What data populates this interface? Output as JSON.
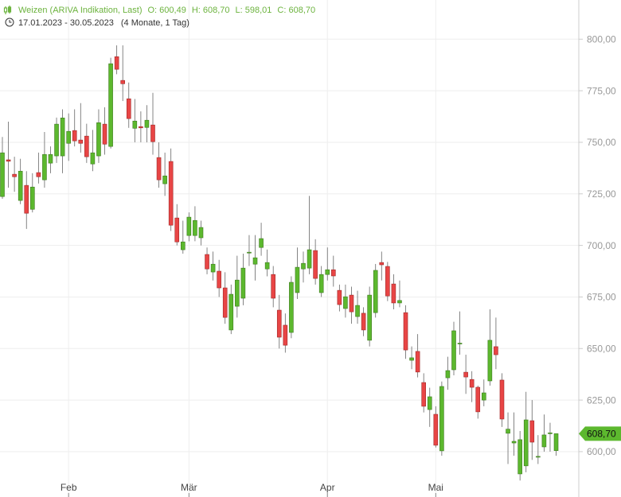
{
  "header": {
    "name": "Weizen (ARIVA Indikation, Last)",
    "open": "O: 600,49",
    "high": "H: 608,70",
    "low": "L: 598,01",
    "close": "C: 608,70",
    "range": "17.01.2023 - 30.05.2023",
    "duration": "(4 Monate, 1 Tag)"
  },
  "chart_data": {
    "type": "candlestick",
    "up_color": "#5cb82e",
    "down_color": "#e84545",
    "ylim": [
      578,
      819
    ],
    "yticks": [
      {
        "value": 600,
        "label": "600,00"
      },
      {
        "value": 625,
        "label": "625,00"
      },
      {
        "value": 650,
        "label": "650,00"
      },
      {
        "value": 675,
        "label": "675,00"
      },
      {
        "value": 700,
        "label": "700,00"
      },
      {
        "value": 725,
        "label": "725,00"
      },
      {
        "value": 750,
        "label": "750,00"
      },
      {
        "value": 775,
        "label": "775,00"
      },
      {
        "value": 800,
        "label": "800,00"
      }
    ],
    "xticks": [
      {
        "value": 11,
        "label": "Feb"
      },
      {
        "value": 31,
        "label": "Mär"
      },
      {
        "value": 54,
        "label": "Apr"
      },
      {
        "value": 72,
        "label": "Mai"
      }
    ],
    "grid": true,
    "last_price": {
      "value": 608.7,
      "label": "608,70",
      "color": "#5cb82e"
    },
    "open": [
      723.7,
      741.5,
      734.5,
      721.8,
      729.1,
      717.5,
      735.3,
      731.8,
      739.9,
      743.4,
      743.4,
      749.5,
      755.7,
      751.1,
      753.0,
      739.5,
      743.4,
      758.8,
      748.0,
      791.5,
      780.0,
      771.1,
      756.8,
      757.6,
      757.2,
      758.4,
      742.6,
      729.9,
      740.7,
      713.3,
      697.9,
      704.8,
      704.8,
      703.7,
      695.6,
      687.1,
      687.5,
      679.4,
      659.0,
      670.5,
      674.4,
      696.3,
      690.9,
      699.0,
      688.6,
      685.9,
      668.6,
      661.3,
      657.8,
      677.1,
      688.6,
      689.0,
      697.5,
      677.1,
      685.9,
      688.2,
      678.2,
      669.4,
      675.9,
      665.5,
      667.1,
      654.0,
      667.4,
      691.7,
      689.8,
      681.3,
      672.1,
      667.4,
      644.3,
      648.6,
      633.5,
      620.4,
      618.1,
      600.4,
      635.8,
      639.7,
      652.2,
      638.5,
      635.0,
      631.2,
      625.0,
      634.3,
      650.9,
      634.7,
      608.9,
      604.2,
      589.2,
      593.1,
      615.0,
      597.3,
      602.3,
      608.7,
      600.49
    ],
    "high": [
      752.6,
      760,
      743,
      742,
      736,
      735,
      745,
      755,
      748,
      762,
      766,
      764,
      766,
      769,
      759,
      756,
      766,
      767,
      791,
      797,
      797,
      779,
      771,
      765,
      768,
      774,
      750,
      745,
      747,
      720,
      712,
      716,
      719,
      712,
      699,
      697,
      693,
      687,
      681,
      695,
      696,
      705,
      705,
      711,
      698,
      690,
      676,
      667,
      685,
      699,
      697,
      724,
      703,
      690,
      699,
      695,
      681,
      681,
      680,
      678,
      670,
      680,
      691,
      697,
      692,
      686,
      683,
      671,
      651,
      657,
      638,
      631,
      622,
      634,
      646,
      663,
      668,
      647,
      639,
      632,
      635,
      669,
      665,
      638,
      619,
      619,
      610,
      629,
      625,
      608,
      618,
      614,
      608.7
    ],
    "low": [
      722.6,
      728,
      726,
      720,
      708,
      716,
      730,
      728,
      735,
      740,
      735,
      741,
      748,
      745,
      740,
      736,
      740,
      744,
      747,
      783,
      770,
      757,
      750,
      750,
      750,
      744,
      728,
      724,
      707,
      700,
      696,
      702,
      702,
      700,
      686,
      683,
      675,
      662,
      657,
      665,
      671,
      690,
      683,
      695,
      685,
      670,
      650,
      648,
      655,
      674,
      682,
      686,
      681,
      675,
      683,
      680,
      668,
      665,
      662,
      662,
      656,
      651,
      665,
      683,
      673,
      669,
      670,
      645,
      640,
      636,
      619,
      612,
      602,
      598,
      630,
      637,
      647,
      628,
      624,
      616,
      622,
      632,
      640,
      612,
      594,
      598,
      586,
      590,
      596,
      594,
      600,
      600,
      598.01
    ],
    "close": [
      744.9,
      740.8,
      733.3,
      736.0,
      715.6,
      728.3,
      733.3,
      744.1,
      744.1,
      758.8,
      761.8,
      755.3,
      750.7,
      749.5,
      743.0,
      744.9,
      759.5,
      749.1,
      788.1,
      785.4,
      778.4,
      761.5,
      760.3,
      757.0,
      760.7,
      750.3,
      731.8,
      733.7,
      709.8,
      701.7,
      701.7,
      713.7,
      712.1,
      708.7,
      688.6,
      690.9,
      679.4,
      665.1,
      676.3,
      683.2,
      689.0,
      696.7,
      694.0,
      703.3,
      691.7,
      674.4,
      655.5,
      651.6,
      682.1,
      689.4,
      691.3,
      697.9,
      684.0,
      685.9,
      688.2,
      685.2,
      671.3,
      675.1,
      667.8,
      670.9,
      659.0,
      675.9,
      687.9,
      690.6,
      675.5,
      672.1,
      673.3,
      649.3,
      645.5,
      638.6,
      622.0,
      626.6,
      603.1,
      631.6,
      639.3,
      658.6,
      652.6,
      636.2,
      631.2,
      619.3,
      628.5,
      654.0,
      647.0,
      615.8,
      610.9,
      605.0,
      605.8,
      615.4,
      604.6,
      597.7,
      608.1,
      609.1,
      608.7
    ]
  }
}
